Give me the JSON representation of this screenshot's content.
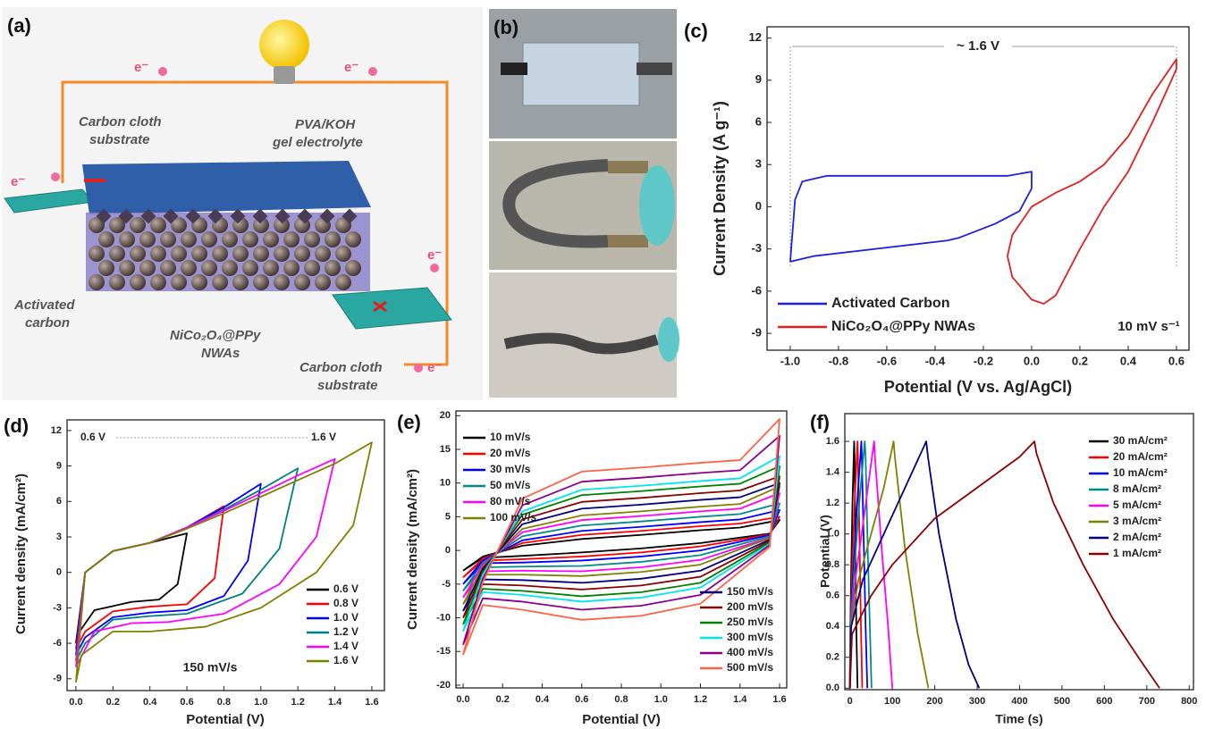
{
  "figure": {
    "panel_a": {
      "label": "(a)",
      "labels": [
        [
          "Carbon cloth",
          "substrate"
        ],
        [
          "PVA/KOH",
          "gel electrolyte"
        ],
        [
          "Activated",
          "carbon"
        ],
        [
          "NiCo₂O₄@PPy",
          "NWAs"
        ],
        [
          "Carbon cloth",
          "substrate"
        ]
      ],
      "electrons": [
        "e⁻",
        "e⁻",
        "e⁻",
        "e⁻",
        "e⁻"
      ]
    },
    "panel_b": {
      "label": "(b)"
    }
  },
  "chart_data": [
    {
      "type": "line",
      "title": "(c)",
      "xlabel": "Potential (V vs. Ag/AgCl)",
      "ylabel": "Current Density (A g⁻¹)",
      "xlim": [
        -1.096,
        0.652
      ],
      "ylim": [
        -10.2,
        12.8
      ],
      "xticks": [
        {
          "value": -1.0,
          "label": "-1.0"
        },
        -0.8,
        -0.6,
        -0.4,
        -0.2,
        {
          "value": 0,
          "label": "0.0"
        },
        0.2,
        0.4,
        0.6
      ],
      "yticks": [
        -9,
        -6,
        -3,
        0,
        3,
        6,
        9,
        12
      ],
      "legend": "lower left",
      "annotations": [
        "~ 1.6 V",
        "10 mV s⁻¹"
      ],
      "series": [
        {
          "name": "Activated Carbon",
          "color": "#1f1fe0",
          "x": [
            -1.0,
            -0.98,
            -0.95,
            -0.85,
            -0.6,
            -0.3,
            -0.1,
            0.0,
            0.0,
            -0.05,
            -0.15,
            -0.3,
            -0.35,
            -0.6,
            -0.9,
            -1.0
          ],
          "values": [
            -3.9,
            0.5,
            1.8,
            2.2,
            2.2,
            2.2,
            2.2,
            2.5,
            1.3,
            -0.3,
            -1.2,
            -2.2,
            -2.4,
            -2.9,
            -3.5,
            -3.9
          ]
        },
        {
          "name": "NiCo₂O₄@PPy NWAs",
          "color": "#e01f1f",
          "x": [
            -0.1,
            -0.08,
            0.0,
            0.1,
            0.2,
            0.3,
            0.4,
            0.5,
            0.6,
            0.6,
            0.5,
            0.4,
            0.3,
            0.2,
            0.1,
            0.05,
            0.0,
            -0.08,
            -0.1
          ],
          "values": [
            -3.5,
            -2.0,
            0.0,
            1.0,
            1.8,
            3.0,
            5.0,
            8.0,
            10.5,
            9.8,
            6.0,
            2.5,
            0.0,
            -3.0,
            -6.3,
            -6.9,
            -6.6,
            -5.0,
            -3.5
          ]
        }
      ]
    },
    {
      "type": "line",
      "title": "(d)",
      "xlabel": "Potential (V)",
      "ylabel": "Current density (mA/cm²)",
      "xlim": [
        -0.048,
        1.668
      ],
      "ylim": [
        -10.0,
        12.9
      ],
      "xticks": [
        {
          "value": 0,
          "label": "0.0"
        },
        0.2,
        0.4,
        0.6,
        0.8,
        {
          "value": 1,
          "label": "1.0"
        },
        1.2,
        1.4,
        1.6
      ],
      "yticks": [
        -9,
        -6,
        -3,
        0,
        3,
        6,
        9,
        12
      ],
      "legend": "lower right",
      "annotations": [
        "0.6 V",
        "1.6 V",
        "150 mV/s"
      ],
      "series": [
        {
          "name": "0.6 V",
          "color": "#000000",
          "x": [
            0,
            0.05,
            0.2,
            0.4,
            0.6,
            0.55,
            0.45,
            0.3,
            0.1,
            0.02,
            0
          ],
          "values": [
            -6,
            0,
            1.8,
            2.5,
            3.3,
            -1,
            -2.3,
            -2.5,
            -3.2,
            -5,
            -6
          ]
        },
        {
          "name": "0.8 V",
          "color": "#ff0000",
          "x": [
            0,
            0.05,
            0.2,
            0.4,
            0.6,
            0.8,
            0.75,
            0.6,
            0.4,
            0.2,
            0.05,
            0
          ],
          "values": [
            -6.5,
            0,
            1.8,
            2.5,
            3.8,
            5.6,
            -0.5,
            -2.7,
            -2.9,
            -3.3,
            -5,
            -6.5
          ]
        },
        {
          "name": "1.0 V",
          "color": "#0000ff",
          "x": [
            0,
            0.05,
            0.2,
            0.4,
            0.6,
            0.8,
            1.0,
            0.93,
            0.8,
            0.6,
            0.4,
            0.2,
            0.05,
            0
          ],
          "values": [
            -7,
            0,
            1.8,
            2.5,
            3.8,
            5.5,
            7.5,
            1,
            -2,
            -3.2,
            -3.4,
            -3.8,
            -5.5,
            -7
          ]
        },
        {
          "name": "1.2 V",
          "color": "#008080",
          "x": [
            0,
            0.05,
            0.2,
            0.4,
            0.6,
            0.8,
            1.0,
            1.2,
            1.1,
            0.9,
            0.6,
            0.4,
            0.2,
            0.05,
            0
          ],
          "values": [
            -7.5,
            0,
            1.8,
            2.5,
            3.8,
            5.3,
            7,
            8.8,
            2,
            -1.8,
            -3.5,
            -3.7,
            -4,
            -6,
            -7.5
          ]
        },
        {
          "name": "1.4 V",
          "color": "#ff00ff",
          "x": [
            0,
            0.05,
            0.2,
            0.4,
            0.6,
            0.8,
            1.0,
            1.2,
            1.4,
            1.3,
            1.1,
            0.8,
            0.5,
            0.3,
            0.1,
            0
          ],
          "values": [
            -8,
            0,
            1.8,
            2.5,
            3.8,
            5.2,
            6.7,
            8.2,
            9.6,
            3,
            -1,
            -3.5,
            -4.2,
            -4.3,
            -5,
            -8
          ]
        },
        {
          "name": "1.6 V",
          "color": "#808000",
          "x": [
            0,
            0.05,
            0.2,
            0.4,
            0.6,
            0.8,
            1.0,
            1.2,
            1.4,
            1.6,
            1.5,
            1.3,
            1.0,
            0.7,
            0.4,
            0.2,
            0.03,
            0
          ],
          "values": [
            -9.3,
            0,
            1.8,
            2.5,
            3.7,
            5,
            6.4,
            7.8,
            9.2,
            11,
            4,
            0,
            -3,
            -4.6,
            -5,
            -5,
            -7,
            -9.3
          ]
        }
      ]
    },
    {
      "type": "line",
      "title": "(e)",
      "xlabel": "Potential (V)",
      "ylabel": "Current density (mA/cm²)",
      "xlim": [
        -0.036,
        1.636
      ],
      "ylim": [
        -20.4,
        20.7
      ],
      "xticks": [
        {
          "value": 0,
          "label": "0.0"
        },
        0.2,
        0.4,
        0.6,
        0.8,
        {
          "value": 1,
          "label": "1.0"
        },
        1.2,
        1.4,
        1.6
      ],
      "yticks": [
        -20,
        -15,
        -10,
        -5,
        0,
        5,
        10,
        15,
        20
      ],
      "legend": [
        "upper left",
        "lower right"
      ],
      "x": [
        0,
        0.1,
        0.3,
        0.6,
        0.9,
        1.2,
        1.4,
        1.6,
        1.55,
        1.4,
        1.2,
        0.9,
        0.6,
        0.3,
        0.1,
        0
      ],
      "series": [
        {
          "name": "10 mV/s",
          "color": "#000000",
          "values": [
            -3,
            -0.9,
            0.7,
            1.7,
            2.3,
            3.0,
            3.4,
            4.5,
            2.5,
            1.9,
            1.1,
            0.3,
            -0.3,
            -0.8,
            -1.1,
            -3
          ]
        },
        {
          "name": "20 mV/s",
          "color": "#ff0000",
          "values": [
            -4,
            -1.2,
            1.1,
            2.3,
            2.9,
            3.6,
            4.0,
            5,
            2.4,
            1.6,
            0.6,
            -0.3,
            -0.9,
            -1.3,
            -1.5,
            -4
          ]
        },
        {
          "name": "30 mV/s",
          "color": "#0000ff",
          "values": [
            -5,
            -1.5,
            1.5,
            2.9,
            3.5,
            4.2,
            4.6,
            6,
            2.3,
            1.3,
            0.0,
            -0.9,
            -1.5,
            -1.8,
            -1.9,
            -5
          ]
        },
        {
          "name": "50 mV/s",
          "color": "#008b8b",
          "values": [
            -6,
            -1.8,
            2.1,
            3.7,
            4.3,
            5.0,
            5.4,
            7,
            2.1,
            0.9,
            -0.7,
            -1.7,
            -2.3,
            -2.4,
            -2.5,
            -6
          ]
        },
        {
          "name": "80 mV/s",
          "color": "#ff00ff",
          "values": [
            -7,
            -2.1,
            2.7,
            4.5,
            5.1,
            5.8,
            6.2,
            8.5,
            1.9,
            0.5,
            -1.4,
            -2.5,
            -3.1,
            -3.0,
            -3.1,
            -7
          ]
        },
        {
          "name": "100 mV/s",
          "color": "#808000",
          "values": [
            -8,
            -2.4,
            3.2,
            5.2,
            5.8,
            6.5,
            6.9,
            9.5,
            1.8,
            0.2,
            -2.1,
            -3.2,
            -3.8,
            -3.6,
            -3.6,
            -8
          ]
        },
        {
          "name": "150 mV/s",
          "color": "#000080",
          "values": [
            -9,
            -2.7,
            3.9,
            6.2,
            6.8,
            7.5,
            7.9,
            10,
            1.6,
            -0.4,
            -3.0,
            -4.2,
            -4.8,
            -4.4,
            -4.3,
            -9
          ]
        },
        {
          "name": "200 mV/s",
          "color": "#8b0000",
          "values": [
            -10,
            -3,
            4.6,
            7.2,
            7.8,
            8.5,
            8.9,
            11,
            1.4,
            -0.9,
            -3.9,
            -5.2,
            -5.8,
            -5.2,
            -5.0,
            -10
          ]
        },
        {
          "name": "250 mV/s",
          "color": "#008000",
          "values": [
            -11,
            -3.3,
            5.3,
            8.2,
            8.8,
            9.5,
            9.9,
            12.5,
            1.2,
            -1.4,
            -4.8,
            -6.2,
            -6.8,
            -6,
            -5.7,
            -11
          ]
        },
        {
          "name": "300 mV/s",
          "color": "#00e5ee",
          "values": [
            -12,
            -3.6,
            5.8,
            9.0,
            9.6,
            10.3,
            10.7,
            14,
            1.0,
            -1.8,
            -5.5,
            -7.0,
            -7.6,
            -6.6,
            -6.2,
            -12
          ]
        },
        {
          "name": "400 mV/s",
          "color": "#8b008b",
          "values": [
            -14,
            -4.2,
            6.7,
            10.2,
            10.8,
            11.5,
            11.9,
            17,
            0.8,
            -2.4,
            -6.6,
            -8.2,
            -8.8,
            -7.6,
            -7.1,
            -14
          ]
        },
        {
          "name": "500 mV/s",
          "color": "#ff6347",
          "values": [
            -15.5,
            -4.7,
            7.7,
            11.7,
            12.3,
            13.0,
            13.4,
            19.5,
            0.5,
            -3.1,
            -7.9,
            -9.7,
            -10.3,
            -8.8,
            -8.1,
            -15.5
          ]
        }
      ]
    },
    {
      "type": "line",
      "title": "(f)",
      "xlabel": "Time (s)",
      "ylabel": "Potential (V)",
      "xlim": [
        -12,
        810
      ],
      "ylim": [
        -0.01,
        1.78
      ],
      "xticks": [
        0,
        100,
        200,
        300,
        400,
        500,
        600,
        700,
        800
      ],
      "yticks": [
        {
          "value": 0,
          "label": "0.0"
        },
        0.2,
        0.4,
        0.6,
        0.8,
        {
          "value": 1,
          "label": "1.0"
        },
        1.2,
        1.4,
        1.6
      ],
      "legend": "upper right",
      "series": [
        {
          "name": "30 mA/cm²",
          "color": "#000000",
          "x": [
            0,
            1,
            3,
            6,
            10,
            11,
            13,
            15,
            18
          ],
          "values": [
            0,
            0.4,
            0.75,
            1.2,
            1.6,
            1.5,
            0.9,
            0.4,
            0
          ]
        },
        {
          "name": "20 mA/cm²",
          "color": "#ff0000",
          "x": [
            0,
            1,
            5,
            11,
            18,
            19,
            23,
            26,
            29
          ],
          "values": [
            0,
            0.4,
            0.75,
            1.2,
            1.6,
            1.5,
            0.9,
            0.4,
            0
          ]
        },
        {
          "name": "10 mA/cm²",
          "color": "#0000ff",
          "x": [
            0,
            1,
            8,
            17,
            27,
            28,
            33,
            37,
            41
          ],
          "values": [
            0,
            0.4,
            0.75,
            1.2,
            1.6,
            1.5,
            0.9,
            0.4,
            0
          ]
        },
        {
          "name": "8 mA/cm²",
          "color": "#008b8b",
          "x": [
            0,
            1,
            10,
            22,
            35,
            37,
            42,
            47,
            51
          ],
          "values": [
            0,
            0.4,
            0.75,
            1.2,
            1.6,
            1.5,
            0.9,
            0.4,
            0
          ]
        },
        {
          "name": "5 mA/cm²",
          "color": "#ff00ff",
          "x": [
            0,
            2,
            15,
            35,
            57,
            59,
            75,
            90,
            100
          ],
          "values": [
            0,
            0.4,
            0.75,
            1.15,
            1.6,
            1.5,
            0.9,
            0.4,
            0
          ]
        },
        {
          "name": "3 mA/cm²",
          "color": "#808000",
          "x": [
            0,
            2,
            20,
            50,
            80,
            103,
            106,
            130,
            160,
            185
          ],
          "values": [
            0,
            0.4,
            0.7,
            1.0,
            1.3,
            1.6,
            1.5,
            0.9,
            0.35,
            0
          ]
        },
        {
          "name": "2 mA/cm²",
          "color": "#000080",
          "x": [
            0,
            3,
            30,
            80,
            130,
            180,
            184,
            210,
            250,
            280,
            305
          ],
          "values": [
            0,
            0.4,
            0.7,
            1.0,
            1.3,
            1.6,
            1.5,
            1.0,
            0.45,
            0.15,
            0
          ]
        },
        {
          "name": "1 mA/cm²",
          "color": "#8b0000",
          "x": [
            0,
            5,
            50,
            100,
            200,
            300,
            400,
            435,
            440,
            480,
            550,
            620,
            680,
            730
          ],
          "values": [
            0,
            0.35,
            0.6,
            0.8,
            1.1,
            1.3,
            1.5,
            1.6,
            1.52,
            1.2,
            0.8,
            0.45,
            0.2,
            0
          ]
        }
      ]
    }
  ]
}
